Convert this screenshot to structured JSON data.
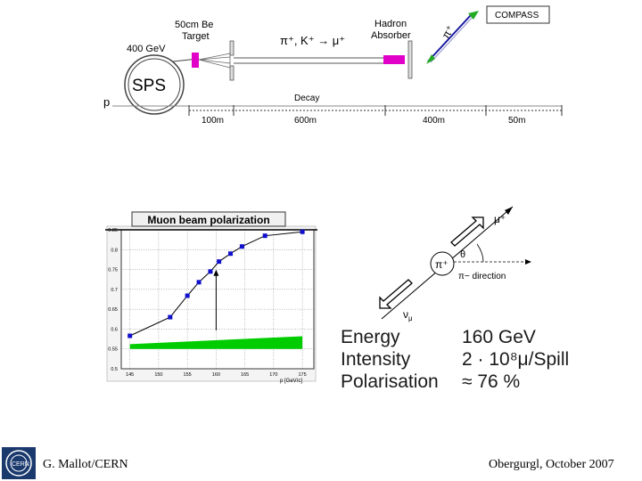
{
  "beamline": {
    "labels": {
      "target": [
        "50cm Be",
        "Target"
      ],
      "energy": "400 GeV",
      "sps": "SPS",
      "p": "p",
      "beam": "π⁺, K⁺ → μ⁺",
      "absorber": [
        "Hadron",
        "Absorber"
      ],
      "pi_plus": "π⁺",
      "compass": "COMPASS",
      "decay": "Decay"
    },
    "distances": [
      "100m",
      "600m",
      "400m",
      "50m"
    ],
    "colors": {
      "target": "#e000c8",
      "absorber": "#e000c8",
      "arrow": "#22aa22",
      "beam": "#1a1aa0"
    }
  },
  "decay_diagram": {
    "mu_label": "μ⁺",
    "nu_label": "ν",
    "nu_sub": "μ",
    "pi_label": "π⁺",
    "theta_label": "θ",
    "direction_label": "π− direction"
  },
  "params": [
    {
      "label": "Energy",
      "value": "160 GeV"
    },
    {
      "label": "Intensity",
      "value": "2 · 10⁸μ/Spill"
    },
    {
      "label": "Polarisation",
      "value": "≈ 76 %"
    }
  ],
  "chart_data": {
    "type": "line",
    "title": "Muon beam polarization",
    "xlabel": "p [GeV/c]",
    "ylabel": "",
    "xlim": [
      143.5,
      177
    ],
    "ylim": [
      0.5,
      0.85
    ],
    "xticks": [
      145,
      150,
      155,
      160,
      165,
      170,
      175
    ],
    "yticks": [
      0.5,
      0.55,
      0.6,
      0.65,
      0.7,
      0.75,
      0.8,
      0.85
    ],
    "ytick_labels": [
      "0.5",
      "0.55",
      "0.6",
      "0.65",
      "0.7",
      "0.75",
      "0.8",
      "0.85"
    ],
    "series": [
      {
        "x": [
          145,
          152,
          155,
          157,
          159,
          160.5,
          162.5,
          164.5,
          168.5,
          175
        ],
        "y": [
          0.583,
          0.63,
          0.684,
          0.718,
          0.745,
          0.77,
          0.79,
          0.808,
          0.835,
          0.845
        ]
      }
    ],
    "band": {
      "x": [
        145,
        175
      ],
      "y_low": [
        0.55,
        0.55
      ],
      "y_high": [
        0.562,
        0.582
      ]
    },
    "reference_line": 0.85,
    "marker_x": 160,
    "marker_y": [
      0.597,
      0.745
    ],
    "band_color": "#00cc00",
    "point_color": "#1010cc"
  },
  "footer": {
    "left": "G. Mallot/CERN",
    "right": "Obergurgl, October 2007"
  },
  "logo_text": "CERN"
}
